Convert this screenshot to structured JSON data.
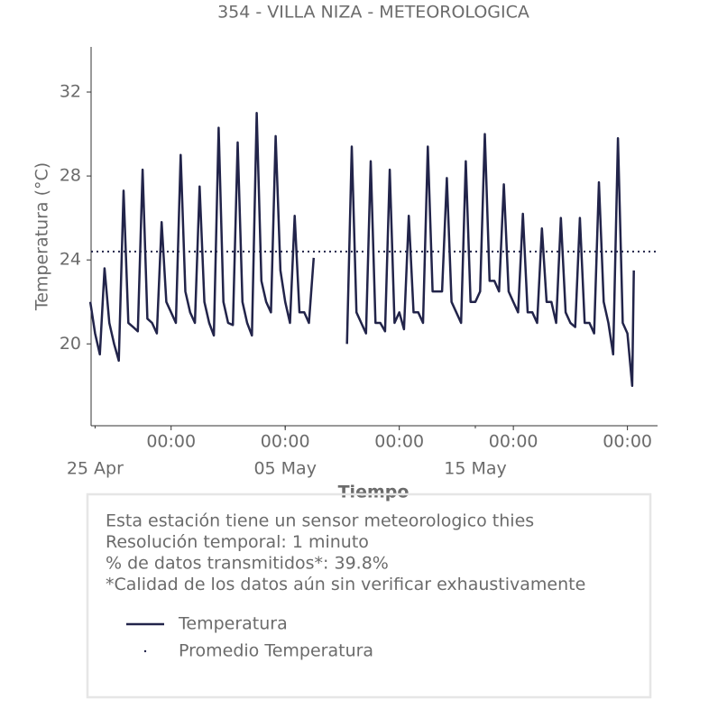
{
  "chart_data": {
    "type": "line",
    "title": "354 - VILLA NIZA - METEOROLOGICA",
    "ylabel": "Temperatura (°C)",
    "xlabel": "Tiempo",
    "ylim": [
      16.1,
      34.15
    ],
    "yticks": [
      20,
      24,
      28,
      32
    ],
    "xlim": [
      "04-24 19:00",
      "05-24 14:00"
    ],
    "xticks": [
      {
        "value": "04-29 00:00",
        "label": "00:00"
      },
      {
        "value": "05-05 00:00",
        "label": "00:00"
      },
      {
        "value": "05-11 00:00",
        "label": "00:00"
      },
      {
        "value": "05-17 00:00",
        "label": "00:00"
      },
      {
        "value": "05-23 00:00",
        "label": "00:00"
      }
    ],
    "xticks_minor": [
      {
        "value": "04-25 00:00",
        "label": "25 Apr"
      },
      {
        "value": "05-05 00:00",
        "label": "05 May"
      },
      {
        "value": "05-15 00:00",
        "label": "15 May"
      }
    ],
    "x": [
      "04-24 18:00",
      "04-25 00:00",
      "04-25 06:00",
      "04-25 12:00",
      "04-25 18:00",
      "04-26 00:00",
      "04-26 06:00",
      "04-26 12:00",
      "04-26 18:00",
      "04-27 00:00",
      "04-27 06:00",
      "04-27 12:00",
      "04-27 18:00",
      "04-28 00:00",
      "04-28 06:00",
      "04-28 12:00",
      "04-28 18:00",
      "04-29 00:00",
      "04-29 06:00",
      "04-29 12:00",
      "04-29 18:00",
      "04-30 00:00",
      "04-30 06:00",
      "04-30 12:00",
      "04-30 18:00",
      "05-01 00:00",
      "05-01 06:00",
      "05-01 12:00",
      "05-01 18:00",
      "05-02 00:00",
      "05-02 06:00",
      "05-02 12:00",
      "05-02 18:00",
      "05-03 00:00",
      "05-03 06:00",
      "05-03 12:00",
      "05-03 18:00",
      "05-04 00:00",
      "05-04 06:00",
      "05-04 12:00",
      "05-04 18:00",
      "05-05 00:00",
      "05-05 06:00",
      "05-05 12:00",
      "05-05 18:00",
      "05-06 00:00",
      "05-06 06:00",
      "05-06 12:00",
      "05-06 18:00",
      "05-08 06:00",
      "05-08 12:00",
      "05-08 18:00",
      "05-09 00:00",
      "05-09 06:00",
      "05-09 12:00",
      "05-09 18:00",
      "05-10 00:00",
      "05-10 06:00",
      "05-10 12:00",
      "05-10 18:00",
      "05-11 00:00",
      "05-11 06:00",
      "05-11 12:00",
      "05-11 18:00",
      "05-12 00:00",
      "05-12 06:00",
      "05-12 12:00",
      "05-12 18:00",
      "05-13 00:00",
      "05-13 06:00",
      "05-13 12:00",
      "05-13 18:00",
      "05-14 00:00",
      "05-14 06:00",
      "05-14 12:00",
      "05-14 18:00",
      "05-15 00:00",
      "05-15 06:00",
      "05-15 12:00",
      "05-15 18:00",
      "05-16 00:00",
      "05-16 06:00",
      "05-16 12:00",
      "05-16 18:00",
      "05-17 00:00",
      "05-17 06:00",
      "05-17 12:00",
      "05-17 18:00",
      "05-18 00:00",
      "05-18 06:00",
      "05-18 12:00",
      "05-18 18:00",
      "05-19 00:00",
      "05-19 06:00",
      "05-19 12:00",
      "05-19 18:00",
      "05-20 00:00",
      "05-20 06:00",
      "05-20 12:00",
      "05-20 18:00",
      "05-21 00:00",
      "05-21 06:00",
      "05-21 12:00",
      "05-21 18:00",
      "05-22 00:00",
      "05-22 06:00",
      "05-22 12:00",
      "05-22 18:00",
      "05-23 00:00",
      "05-23 06:00",
      "05-23 08:00"
    ],
    "series": [
      {
        "name": "Temperatura",
        "color": "#22244a",
        "values": [
          22.0,
          20.5,
          19.5,
          23.6,
          21.0,
          20.0,
          19.2,
          27.3,
          21.0,
          20.8,
          20.6,
          28.3,
          21.2,
          21.0,
          20.5,
          25.8,
          22.0,
          21.5,
          21.0,
          29.0,
          22.5,
          21.5,
          21.0,
          27.5,
          22.0,
          21.0,
          20.4,
          30.3,
          22.0,
          21.0,
          20.9,
          29.6,
          22.0,
          21.0,
          20.4,
          31.0,
          23.0,
          22.0,
          21.5,
          29.9,
          23.5,
          22.0,
          21.0,
          26.1,
          21.5,
          21.5,
          21.0,
          24.1,
          null,
          20.0,
          29.4,
          21.5,
          21.0,
          20.5,
          28.7,
          21.0,
          21.0,
          20.6,
          28.3,
          21.0,
          21.5,
          20.7,
          26.1,
          21.5,
          21.5,
          21.0,
          29.4,
          22.5,
          22.5,
          22.5,
          27.9,
          22.0,
          21.5,
          21.0,
          28.7,
          22.0,
          22.0,
          22.5,
          30.0,
          23.0,
          23.0,
          22.5,
          27.6,
          22.5,
          22.0,
          21.5,
          26.2,
          21.5,
          21.5,
          21.0,
          25.5,
          22.0,
          22.0,
          21.0,
          26.0,
          21.5,
          21.0,
          20.8,
          26.0,
          21.0,
          21.0,
          20.5,
          27.7,
          22.0,
          21.0,
          19.5,
          29.8,
          21.0,
          20.5,
          18.0,
          23.5
        ]
      }
    ],
    "mean": {
      "name": "Promedio Temperatura",
      "value": 24.4,
      "color": "#22244a"
    },
    "notes": [
      "Esta estación tiene un sensor meteorologico thies",
      "Resolución temporal: 1 minuto",
      "% de datos transmitidos*: 39.8%",
      "*Calidad de los datos aún sin verificar exhaustivamente"
    ]
  }
}
